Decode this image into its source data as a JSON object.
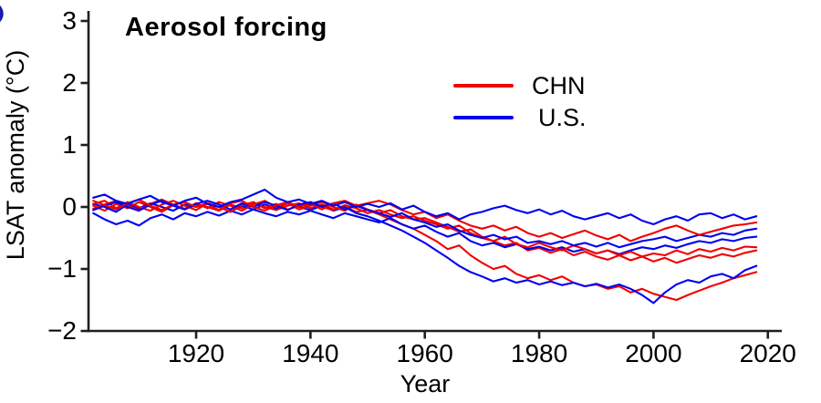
{
  "title": "Aerosol forcing",
  "panel": {
    "partial_label_color": "#1a1aae"
  },
  "colors": {
    "chn": "#f00000",
    "us": "#0000f0",
    "axis": "#1f1f1f",
    "text": "#000000",
    "background": "#ffffff"
  },
  "y_axis": {
    "label": "LSAT anomaly (°C)",
    "ticks": [
      "3",
      "2",
      "1",
      "0",
      "−1",
      "−2"
    ],
    "tick_values": [
      3,
      2,
      1,
      0,
      -1,
      -2
    ]
  },
  "x_axis": {
    "label": "Year",
    "ticks": [
      "1920",
      "1940",
      "1960",
      "1980",
      "2000",
      "2020"
    ],
    "tick_values": [
      1920,
      1940,
      1960,
      1980,
      2000,
      2020
    ]
  },
  "legend": [
    {
      "label": "CHN",
      "color": "#f00000"
    },
    {
      "label": "U.S.",
      "color": "#0000f0"
    }
  ],
  "chart_data": {
    "type": "line",
    "title": "Aerosol forcing",
    "xlabel": "Year",
    "ylabel": "LSAT anomaly (°C)",
    "xlim": [
      1900,
      2022
    ],
    "ylim": [
      -2,
      3.2
    ],
    "grid": false,
    "legend_position": "upper-right-inside",
    "x_start": 1902,
    "x_step": 2,
    "x_end": 2018,
    "series": [
      {
        "name": "CHN run 1",
        "group": "CHN",
        "color": "#f00000",
        "values": [
          0.05,
          0.1,
          -0.02,
          0.08,
          0,
          -0.06,
          0.04,
          0.1,
          0.02,
          -0.05,
          0.06,
          0,
          -0.08,
          0.03,
          0.08,
          -0.02,
          0.05,
          -0.04,
          0.02,
          0.08,
          0,
          -0.05,
          0.03,
          -0.02,
          -0.1,
          -0.05,
          -0.12,
          -0.18,
          -0.15,
          -0.22,
          -0.28,
          -0.35,
          -0.3,
          -0.42,
          -0.5,
          -0.55,
          -0.48,
          -0.6,
          -0.65,
          -0.58,
          -0.65,
          -0.7,
          -0.62,
          -0.68,
          -0.75,
          -0.7,
          -0.78,
          -0.72,
          -0.8,
          -0.75,
          -0.78,
          -0.7,
          -0.76,
          -0.68,
          -0.72,
          -0.66,
          -0.7,
          -0.64,
          -0.65
        ]
      },
      {
        "name": "CHN run 2",
        "group": "CHN",
        "color": "#f00000",
        "values": [
          -0.03,
          0.04,
          0.1,
          0.02,
          -0.05,
          0.05,
          0.12,
          0.04,
          -0.03,
          0.06,
          -0.02,
          0.08,
          0.02,
          -0.06,
          0.04,
          0.1,
          0,
          0.06,
          -0.04,
          0.02,
          0.08,
          0,
          -0.06,
          0.04,
          -0.04,
          -0.1,
          -0.05,
          -0.15,
          -0.2,
          -0.18,
          -0.25,
          -0.32,
          -0.4,
          -0.36,
          -0.48,
          -0.55,
          -0.62,
          -0.58,
          -0.7,
          -0.66,
          -0.74,
          -0.68,
          -0.78,
          -0.72,
          -0.8,
          -0.85,
          -0.78,
          -0.86,
          -0.8,
          -0.88,
          -0.82,
          -0.9,
          -0.84,
          -0.78,
          -0.82,
          -0.76,
          -0.8,
          -0.74,
          -0.7
        ]
      },
      {
        "name": "CHN run 3",
        "group": "CHN",
        "color": "#f00000",
        "values": [
          0.1,
          0.03,
          -0.04,
          0.06,
          0.12,
          0.02,
          -0.05,
          0.04,
          0.08,
          0,
          0.05,
          -0.05,
          0.06,
          0.1,
          0,
          -0.06,
          0.03,
          0.08,
          0,
          0.05,
          -0.04,
          0.06,
          0.1,
          0.02,
          0.06,
          0.1,
          0.04,
          -0.05,
          -0.12,
          -0.08,
          -0.18,
          -0.12,
          -0.22,
          -0.3,
          -0.35,
          -0.3,
          -0.38,
          -0.32,
          -0.42,
          -0.48,
          -0.42,
          -0.5,
          -0.44,
          -0.38,
          -0.46,
          -0.52,
          -0.45,
          -0.55,
          -0.48,
          -0.42,
          -0.35,
          -0.3,
          -0.38,
          -0.45,
          -0.4,
          -0.35,
          -0.3,
          -0.28,
          -0.25
        ]
      },
      {
        "name": "CHN run 4",
        "group": "CHN",
        "color": "#f00000",
        "values": [
          0.02,
          -0.06,
          0.05,
          -0.02,
          0.08,
          0,
          -0.08,
          0.03,
          -0.04,
          0.04,
          0,
          -0.06,
          0.04,
          -0.02,
          0.06,
          0,
          -0.05,
          0.02,
          0.06,
          -0.02,
          0.04,
          -0.04,
          0,
          -0.08,
          -0.05,
          -0.12,
          -0.2,
          -0.28,
          -0.35,
          -0.45,
          -0.55,
          -0.68,
          -0.62,
          -0.78,
          -0.9,
          -1,
          -0.95,
          -1.08,
          -1.15,
          -1.1,
          -1.18,
          -1.12,
          -1.22,
          -1.28,
          -1.25,
          -1.32,
          -1.28,
          -1.38,
          -1.32,
          -1.4,
          -1.45,
          -1.5,
          -1.42,
          -1.35,
          -1.28,
          -1.22,
          -1.15,
          -1.1,
          -1.05
        ]
      },
      {
        "name": "U.S. run 1",
        "group": "U.S.",
        "color": "#0000f0",
        "values": [
          0.15,
          0.2,
          0.1,
          0.05,
          0.12,
          0.18,
          0.08,
          0.02,
          0.1,
          0.15,
          0.05,
          0,
          0.08,
          0.12,
          0.2,
          0.28,
          0.15,
          0.08,
          0.12,
          0.05,
          0.1,
          0.02,
          0.08,
          0,
          0.05,
          0,
          0.06,
          -0.04,
          0.02,
          -0.08,
          -0.15,
          -0.1,
          -0.2,
          -0.12,
          -0.08,
          -0.02,
          0.02,
          -0.05,
          -0.1,
          -0.04,
          -0.12,
          -0.06,
          -0.15,
          -0.2,
          -0.15,
          -0.1,
          -0.18,
          -0.12,
          -0.22,
          -0.28,
          -0.2,
          -0.15,
          -0.22,
          -0.12,
          -0.1,
          -0.18,
          -0.12,
          -0.2,
          -0.15
        ]
      },
      {
        "name": "U.S. run 2",
        "group": "U.S.",
        "color": "#0000f0",
        "values": [
          -0.05,
          0.02,
          0.08,
          0,
          -0.06,
          0.04,
          0.1,
          0.02,
          -0.04,
          0.05,
          0.1,
          0.04,
          -0.04,
          0.06,
          0,
          0.08,
          0.02,
          -0.05,
          0.04,
          0.08,
          0,
          0.06,
          -0.04,
          0.02,
          -0.05,
          -0.1,
          -0.16,
          -0.1,
          -0.2,
          -0.25,
          -0.32,
          -0.28,
          -0.38,
          -0.45,
          -0.5,
          -0.45,
          -0.52,
          -0.48,
          -0.58,
          -0.55,
          -0.6,
          -0.55,
          -0.62,
          -0.58,
          -0.64,
          -0.58,
          -0.65,
          -0.6,
          -0.55,
          -0.52,
          -0.48,
          -0.55,
          -0.5,
          -0.45,
          -0.48,
          -0.42,
          -0.45,
          -0.38,
          -0.35
        ]
      },
      {
        "name": "U.S. run 3",
        "group": "U.S.",
        "color": "#0000f0",
        "values": [
          -0.1,
          -0.2,
          -0.28,
          -0.22,
          -0.3,
          -0.18,
          -0.12,
          -0.2,
          -0.1,
          -0.15,
          -0.08,
          -0.14,
          -0.06,
          -0.12,
          -0.04,
          -0.1,
          -0.15,
          -0.08,
          -0.12,
          -0.06,
          -0.12,
          -0.18,
          -0.1,
          -0.15,
          -0.2,
          -0.25,
          -0.18,
          -0.28,
          -0.35,
          -0.3,
          -0.4,
          -0.48,
          -0.42,
          -0.55,
          -0.62,
          -0.58,
          -0.65,
          -0.6,
          -0.68,
          -0.64,
          -0.7,
          -0.65,
          -0.72,
          -0.68,
          -0.75,
          -0.7,
          -0.76,
          -0.7,
          -0.65,
          -0.68,
          -0.62,
          -0.66,
          -0.6,
          -0.55,
          -0.58,
          -0.52,
          -0.55,
          -0.5,
          -0.48
        ]
      },
      {
        "name": "U.S. run 4",
        "group": "U.S.",
        "color": "#0000f0",
        "values": [
          0.05,
          0,
          -0.08,
          0.04,
          -0.02,
          0.06,
          0,
          -0.06,
          0.04,
          0,
          0.06,
          0,
          -0.08,
          0.02,
          -0.04,
          0.04,
          -0.02,
          0.06,
          0,
          -0.05,
          0.02,
          -0.06,
          0,
          -0.1,
          -0.15,
          -0.22,
          -0.3,
          -0.38,
          -0.48,
          -0.58,
          -0.7,
          -0.82,
          -0.95,
          -1.05,
          -1.12,
          -1.2,
          -1.15,
          -1.22,
          -1.18,
          -1.25,
          -1.2,
          -1.26,
          -1.22,
          -1.28,
          -1.24,
          -1.3,
          -1.25,
          -1.32,
          -1.42,
          -1.55,
          -1.38,
          -1.25,
          -1.18,
          -1.22,
          -1.12,
          -1.08,
          -1.15,
          -1.02,
          -0.95
        ]
      }
    ]
  }
}
